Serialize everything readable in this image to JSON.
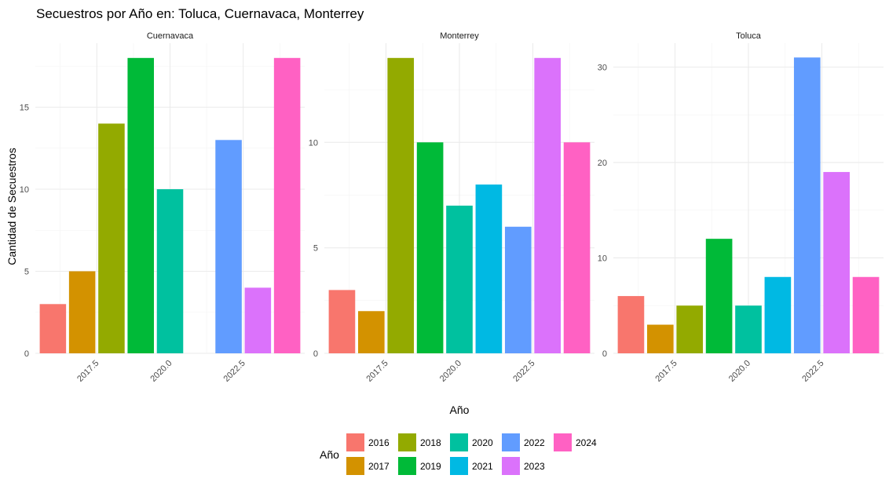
{
  "chart_data": {
    "type": "bar",
    "title": "Secuestros por Año en: Toluca, Cuernavaca, Monterrey",
    "xlabel": "Año",
    "ylabel": "Cantidad de Secuestros",
    "x_ticks": [
      2017.5,
      2020.0,
      2022.5
    ],
    "x_tick_labels": [
      "2017.5",
      "2020.0",
      "2022.5"
    ],
    "legend": {
      "title": "Año",
      "position": "bottom",
      "entries": [
        {
          "label": "2016",
          "color": "#F8766D"
        },
        {
          "label": "2017",
          "color": "#D39200"
        },
        {
          "label": "2018",
          "color": "#93AA00"
        },
        {
          "label": "2019",
          "color": "#00BA38"
        },
        {
          "label": "2020",
          "color": "#00C19F"
        },
        {
          "label": "2021",
          "color": "#00B9E3"
        },
        {
          "label": "2022",
          "color": "#619CFF"
        },
        {
          "label": "2023",
          "color": "#DB72FB"
        },
        {
          "label": "2024",
          "color": "#FF61C3"
        }
      ]
    },
    "grid": true,
    "panels": [
      {
        "name": "Cuernavaca",
        "ylim": [
          0,
          18.9
        ],
        "y_ticks": [
          0,
          5,
          10,
          15
        ],
        "bars": [
          {
            "year": 2016,
            "value": 3
          },
          {
            "year": 2017,
            "value": 5
          },
          {
            "year": 2018,
            "value": 14
          },
          {
            "year": 2019,
            "value": 18
          },
          {
            "year": 2020,
            "value": 10
          },
          {
            "year": 2022,
            "value": 13
          },
          {
            "year": 2023,
            "value": 4
          },
          {
            "year": 2024,
            "value": 18
          }
        ]
      },
      {
        "name": "Monterrey",
        "ylim": [
          0,
          14.7
        ],
        "y_ticks": [
          0,
          5,
          10
        ],
        "bars": [
          {
            "year": 2016,
            "value": 3
          },
          {
            "year": 2017,
            "value": 2
          },
          {
            "year": 2018,
            "value": 14
          },
          {
            "year": 2019,
            "value": 10
          },
          {
            "year": 2020,
            "value": 7
          },
          {
            "year": 2021,
            "value": 8
          },
          {
            "year": 2022,
            "value": 6
          },
          {
            "year": 2023,
            "value": 14
          },
          {
            "year": 2024,
            "value": 10
          }
        ]
      },
      {
        "name": "Toluca",
        "ylim": [
          0,
          32.5
        ],
        "y_ticks": [
          0,
          10,
          20,
          30
        ],
        "bars": [
          {
            "year": 2016,
            "value": 6
          },
          {
            "year": 2017,
            "value": 3
          },
          {
            "year": 2018,
            "value": 5
          },
          {
            "year": 2019,
            "value": 12
          },
          {
            "year": 2020,
            "value": 5
          },
          {
            "year": 2021,
            "value": 8
          },
          {
            "year": 2022,
            "value": 31
          },
          {
            "year": 2023,
            "value": 19
          },
          {
            "year": 2024,
            "value": 8
          }
        ]
      }
    ]
  }
}
